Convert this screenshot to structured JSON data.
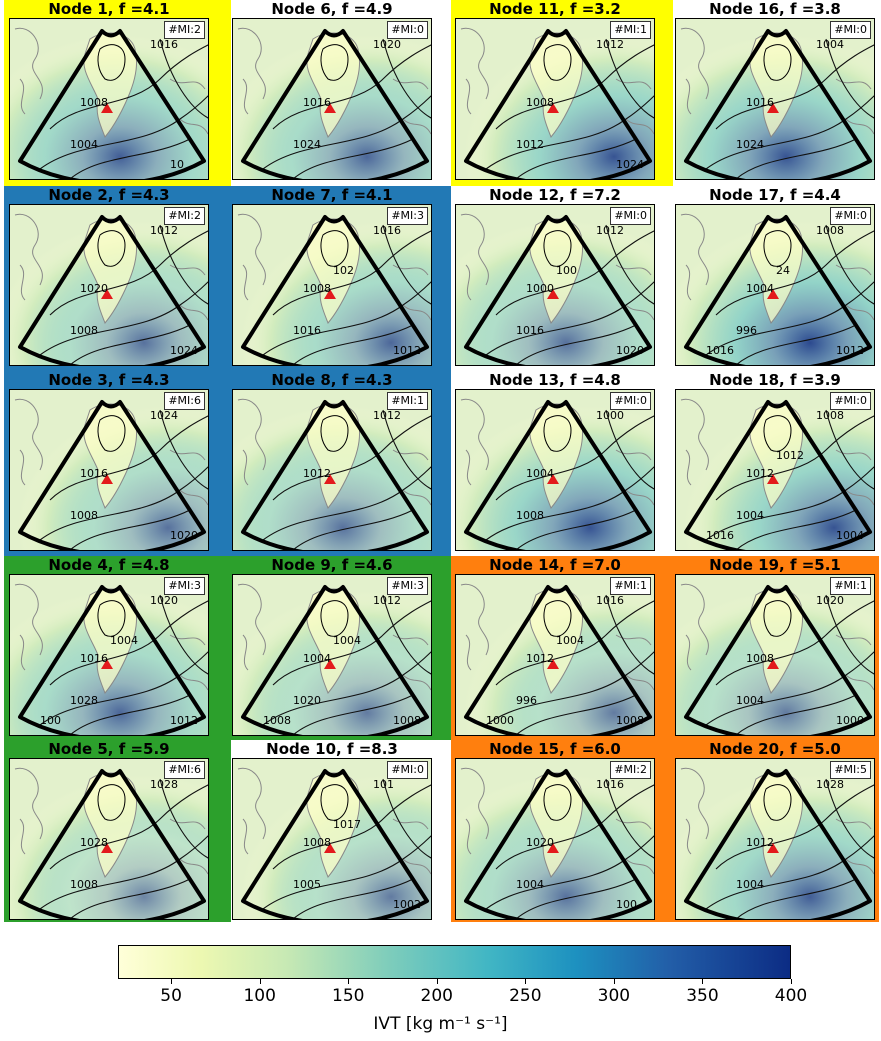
{
  "colors": {
    "yellow": "#ffff00",
    "blue": "#2279b5",
    "green": "#2ca02c",
    "orange": "#ff7f0e",
    "station_marker": "#e31a1c"
  },
  "groups": [
    {
      "name": "group-yellow-row1-left",
      "color_key": "yellow"
    },
    {
      "name": "group-yellow-row1-right",
      "color_key": "yellow"
    },
    {
      "name": "group-blue",
      "color_key": "blue"
    },
    {
      "name": "group-green",
      "color_key": "green"
    },
    {
      "name": "group-orange",
      "color_key": "orange"
    }
  ],
  "nodes": [
    {
      "title": "Node 1, f =4.1",
      "mi": "#MI:2",
      "ivt_level": 0.45,
      "labels": [
        "1016",
        "1008",
        "1004",
        "10"
      ]
    },
    {
      "title": "Node 6, f =4.9",
      "mi": "#MI:0",
      "ivt_level": 0.4,
      "labels": [
        "1020",
        "1016",
        "1024"
      ]
    },
    {
      "title": "Node 11, f =3.2",
      "mi": "#MI:1",
      "ivt_level": 0.5,
      "labels": [
        "1012",
        "1008",
        "1012",
        "1024"
      ]
    },
    {
      "title": "Node 16, f =3.8",
      "mi": "#MI:0",
      "ivt_level": 0.5,
      "labels": [
        "1004",
        "1016",
        "1024"
      ]
    },
    {
      "title": "Node 2, f =4.3",
      "mi": "#MI:2",
      "ivt_level": 0.35,
      "labels": [
        "1012",
        "1020",
        "1008",
        "1024"
      ]
    },
    {
      "title": "Node 7, f =4.1",
      "mi": "#MI:3",
      "ivt_level": 0.4,
      "labels": [
        "1016",
        "1008",
        "1016",
        "1012",
        "102"
      ]
    },
    {
      "title": "Node 12, f =7.2",
      "mi": "#MI:0",
      "ivt_level": 0.35,
      "labels": [
        "1012",
        "1000",
        "1016",
        "1020",
        "100"
      ]
    },
    {
      "title": "Node 17, f =4.4",
      "mi": "#MI:0",
      "ivt_level": 0.55,
      "labels": [
        "1008",
        "1004",
        "996",
        "1012",
        "24",
        "1016"
      ]
    },
    {
      "title": "Node 3, f =4.3",
      "mi": "#MI:6",
      "ivt_level": 0.35,
      "labels": [
        "1024",
        "1016",
        "1008",
        "1020"
      ]
    },
    {
      "title": "Node 8, f =4.3",
      "mi": "#MI:1",
      "ivt_level": 0.35,
      "labels": [
        "1012",
        "1012"
      ]
    },
    {
      "title": "Node 13, f =4.8",
      "mi": "#MI:0",
      "ivt_level": 0.5,
      "labels": [
        "1000",
        "1004",
        "1008"
      ]
    },
    {
      "title": "Node 18, f =3.9",
      "mi": "#MI:0",
      "ivt_level": 0.5,
      "labels": [
        "1008",
        "1012",
        "1004",
        "1004",
        "1012",
        "1016"
      ]
    },
    {
      "title": "Node 4, f =4.8",
      "mi": "#MI:3",
      "ivt_level": 0.4,
      "labels": [
        "1020",
        "1016",
        "1028",
        "1012",
        "1004",
        "100"
      ]
    },
    {
      "title": "Node 9, f =4.6",
      "mi": "#MI:3",
      "ivt_level": 0.3,
      "labels": [
        "1012",
        "1004",
        "1020",
        "1008",
        "1004",
        "1008"
      ]
    },
    {
      "title": "Node 14, f =7.0",
      "mi": "#MI:1",
      "ivt_level": 0.3,
      "labels": [
        "1016",
        "1012",
        "996",
        "1008",
        "1004",
        "1000"
      ]
    },
    {
      "title": "Node 19, f =5.1",
      "mi": "#MI:1",
      "ivt_level": 0.3,
      "labels": [
        "1020",
        "1008",
        "1004",
        "1000"
      ]
    },
    {
      "title": "Node 5, f =5.9",
      "mi": "#MI:6",
      "ivt_level": 0.25,
      "labels": [
        "1028",
        "1028",
        "1008"
      ]
    },
    {
      "title": "Node 10, f =8.3",
      "mi": "#MI:0",
      "ivt_level": 0.3,
      "labels": [
        "101",
        "1008",
        "1005",
        "1002",
        "1017"
      ]
    },
    {
      "title": "Node 15, f =6.0",
      "mi": "#MI:2",
      "ivt_level": 0.35,
      "labels": [
        "1016",
        "1020",
        "1004",
        "100"
      ]
    },
    {
      "title": "Node 20, f =5.0",
      "mi": "#MI:5",
      "ivt_level": 0.45,
      "labels": [
        "1028",
        "1012",
        "1004"
      ]
    }
  ],
  "colorbar": {
    "ticks": [
      "50",
      "100",
      "150",
      "200",
      "250",
      "300",
      "350",
      "400"
    ],
    "min": 20,
    "max": 400,
    "label": "IVT [kg m⁻¹ s⁻¹]"
  }
}
